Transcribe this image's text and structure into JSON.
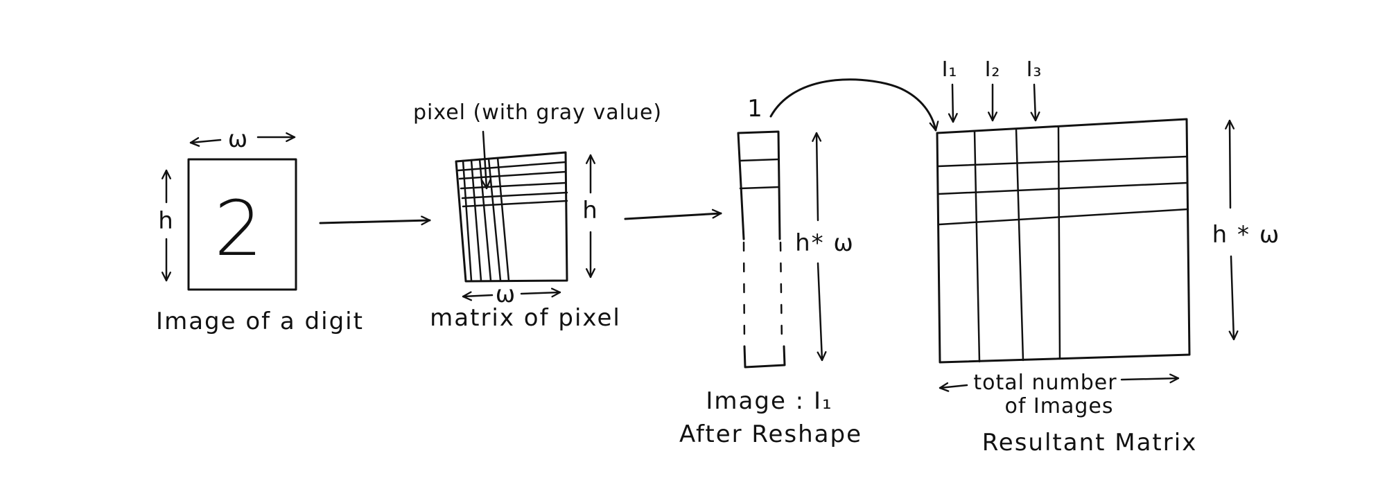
{
  "stage1": {
    "digit": "2",
    "width_label": "ω",
    "height_label": "h",
    "caption": "Image of a digit"
  },
  "stage2": {
    "pixel_label": "pixel (with gray value)",
    "width_label": "ω",
    "height_label": "h",
    "caption": "matrix of pixel"
  },
  "stage3": {
    "index_label": "1",
    "length_label": "h* ω",
    "caption_line1": "Image : I₁",
    "caption_line2": "After Reshape"
  },
  "stage4": {
    "column_labels": [
      "I₁",
      "I₂",
      "I₃"
    ],
    "height_label": "h * ω",
    "width_label_line1": "total number",
    "width_label_line2": "of Images",
    "caption": "Resultant Matrix"
  },
  "colors": {
    "ink": "#111111",
    "background": "#ffffff"
  }
}
